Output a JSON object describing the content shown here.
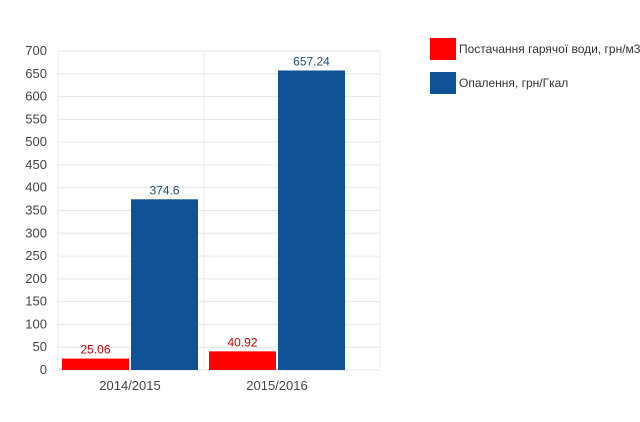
{
  "chart_data": {
    "type": "bar",
    "categories": [
      "2014/2015",
      "2015/2016"
    ],
    "series": [
      {
        "name": "Постачання гарячої води, грн/м3",
        "values": [
          25.06,
          40.92
        ],
        "color": "#ff0000",
        "label_color": "#c00000"
      },
      {
        "name": "Опалення, грн/Гкал",
        "values": [
          374.6,
          657.24
        ],
        "color": "#0f5295",
        "label_color": "#1f4e79"
      }
    ],
    "data_labels": [
      [
        "25.06",
        "40.92"
      ],
      [
        "374.6",
        "657.24"
      ]
    ],
    "y_ticks": [
      "0",
      "50",
      "100",
      "150",
      "200",
      "250",
      "300",
      "350",
      "400",
      "450",
      "500",
      "550",
      "600",
      "650",
      "700"
    ],
    "ylim": [
      0,
      700
    ],
    "grid": true,
    "legend_position": "right",
    "title": "",
    "xlabel": "",
    "ylabel": ""
  }
}
